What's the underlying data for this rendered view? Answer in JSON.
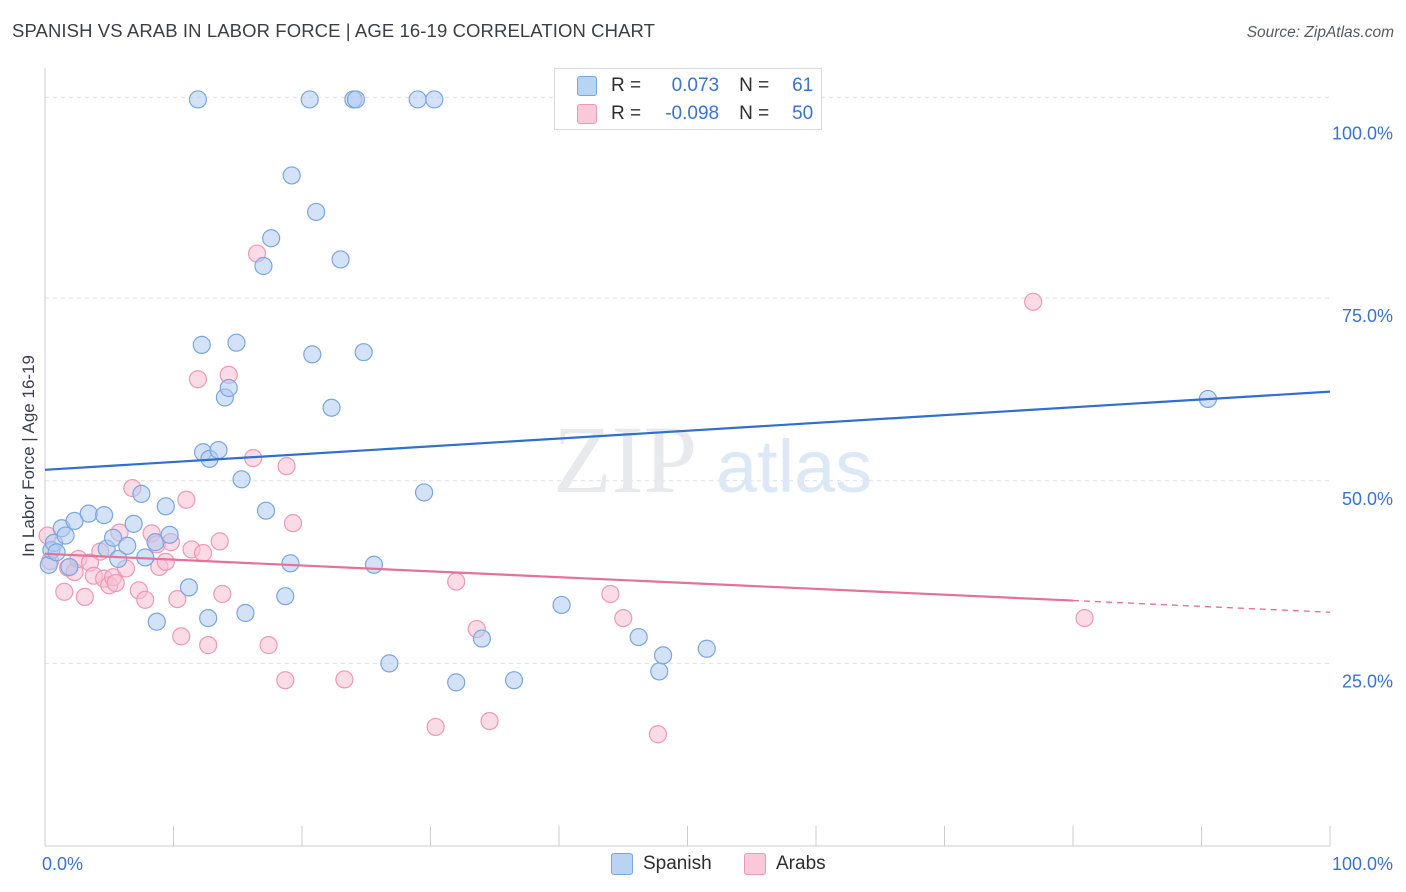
{
  "title": "SPANISH VS ARAB IN LABOR FORCE | AGE 16-19 CORRELATION CHART",
  "source": "Source: ZipAtlas.com",
  "watermark": {
    "zip": "ZIP",
    "atlas": "atlas"
  },
  "legend": {
    "spanish": {
      "r_label": "R =",
      "r_value": "0.073",
      "n_label": "N =",
      "n_value": "61"
    },
    "arabs": {
      "r_label": "R =",
      "r_value": "-0.098",
      "n_label": "N =",
      "n_value": "50"
    }
  },
  "bottom_legend": {
    "spanish": "Spanish",
    "arabs": "Arabs"
  },
  "colors": {
    "spanish_fill": "#aecbf1",
    "spanish_stroke": "#7aa6e0",
    "spanish_line": "#2f6fd0",
    "arabs_fill": "#f8bfd2",
    "arabs_stroke": "#ec98b6",
    "arabs_line": "#e7709a",
    "tick_label": "#3973d1",
    "grid": "#dcdfe4"
  },
  "chart_data": {
    "type": "scatter",
    "title": "SPANISH VS ARAB IN LABOR FORCE | AGE 16-19 CORRELATION CHART",
    "xlabel": "",
    "ylabel": "In Labor Force | Age 16-19",
    "xlim": [
      0,
      100
    ],
    "ylim": [
      0,
      105
    ],
    "x_tick_labels": [
      {
        "value": 0,
        "label": "0.0%"
      },
      {
        "value": 100,
        "label": "100.0%"
      }
    ],
    "y_tick_labels": [
      {
        "value": 25,
        "label": "25.0%"
      },
      {
        "value": 50,
        "label": "50.0%"
      },
      {
        "value": 75,
        "label": "75.0%"
      },
      {
        "value": 100,
        "label": "100.0%"
      }
    ],
    "y_gridlines": [
      25,
      50,
      75,
      102.5
    ],
    "x_ticks": [
      0,
      10,
      20,
      30,
      40,
      50,
      60,
      70,
      80,
      90,
      100
    ],
    "series": [
      {
        "name": "Spanish",
        "r": 0.073,
        "n": 61,
        "trend": {
          "x": [
            0,
            100
          ],
          "y": [
            51.5,
            62.2
          ],
          "dashed_from": null
        },
        "points": [
          {
            "x": 0.3,
            "y": 38.5
          },
          {
            "x": 0.5,
            "y": 40.5
          },
          {
            "x": 0.7,
            "y": 41.5
          },
          {
            "x": 1.3,
            "y": 43.5
          },
          {
            "x": 1.6,
            "y": 42.5
          },
          {
            "x": 2.3,
            "y": 44.5
          },
          {
            "x": 3.4,
            "y": 45.5
          },
          {
            "x": 4.6,
            "y": 45.3
          },
          {
            "x": 4.8,
            "y": 40.7
          },
          {
            "x": 5.3,
            "y": 42.2
          },
          {
            "x": 5.7,
            "y": 39.3
          },
          {
            "x": 6.4,
            "y": 41.1
          },
          {
            "x": 6.9,
            "y": 44.1
          },
          {
            "x": 7.5,
            "y": 48.2
          },
          {
            "x": 7.8,
            "y": 39.5
          },
          {
            "x": 8.6,
            "y": 41.6
          },
          {
            "x": 8.7,
            "y": 30.7
          },
          {
            "x": 9.4,
            "y": 46.5
          },
          {
            "x": 9.7,
            "y": 42.6
          },
          {
            "x": 11.2,
            "y": 35.4
          },
          {
            "x": 11.9,
            "y": 102.2
          },
          {
            "x": 12.2,
            "y": 68.6
          },
          {
            "x": 12.3,
            "y": 53.9
          },
          {
            "x": 12.8,
            "y": 53.0
          },
          {
            "x": 12.7,
            "y": 31.2
          },
          {
            "x": 13.5,
            "y": 54.2
          },
          {
            "x": 14.0,
            "y": 61.4
          },
          {
            "x": 14.3,
            "y": 62.7
          },
          {
            "x": 14.9,
            "y": 68.9
          },
          {
            "x": 15.3,
            "y": 50.2
          },
          {
            "x": 15.6,
            "y": 31.9
          },
          {
            "x": 17.0,
            "y": 79.4
          },
          {
            "x": 17.2,
            "y": 45.9
          },
          {
            "x": 17.6,
            "y": 83.2
          },
          {
            "x": 18.7,
            "y": 34.2
          },
          {
            "x": 19.1,
            "y": 38.7
          },
          {
            "x": 19.2,
            "y": 91.8
          },
          {
            "x": 20.6,
            "y": 102.2
          },
          {
            "x": 20.8,
            "y": 67.3
          },
          {
            "x": 21.1,
            "y": 86.8
          },
          {
            "x": 22.3,
            "y": 60.0
          },
          {
            "x": 23.0,
            "y": 80.3
          },
          {
            "x": 24.0,
            "y": 102.2
          },
          {
            "x": 24.2,
            "y": 102.2
          },
          {
            "x": 24.8,
            "y": 67.6
          },
          {
            "x": 25.6,
            "y": 38.5
          },
          {
            "x": 26.8,
            "y": 25.0
          },
          {
            "x": 29.0,
            "y": 102.2
          },
          {
            "x": 29.5,
            "y": 48.4
          },
          {
            "x": 30.3,
            "y": 102.2
          },
          {
            "x": 32.0,
            "y": 22.4
          },
          {
            "x": 34.0,
            "y": 28.4
          },
          {
            "x": 36.5,
            "y": 22.7
          },
          {
            "x": 40.2,
            "y": 33.0
          },
          {
            "x": 46.2,
            "y": 28.6
          },
          {
            "x": 47.8,
            "y": 23.9
          },
          {
            "x": 48.1,
            "y": 26.1
          },
          {
            "x": 51.5,
            "y": 27.0
          },
          {
            "x": 90.5,
            "y": 61.2
          },
          {
            "x": 0.9,
            "y": 40.2
          },
          {
            "x": 1.9,
            "y": 38.2
          }
        ]
      },
      {
        "name": "Arabs",
        "r": -0.098,
        "n": 50,
        "trend": {
          "x": [
            0,
            100
          ],
          "y": [
            40.0,
            32.0
          ],
          "dashed_from": 80
        },
        "points": [
          {
            "x": 0.2,
            "y": 42.5
          },
          {
            "x": 0.4,
            "y": 39.0
          },
          {
            "x": 1.5,
            "y": 34.8
          },
          {
            "x": 1.8,
            "y": 38.1
          },
          {
            "x": 2.3,
            "y": 37.5
          },
          {
            "x": 2.6,
            "y": 39.3
          },
          {
            "x": 3.1,
            "y": 34.1
          },
          {
            "x": 3.5,
            "y": 38.8
          },
          {
            "x": 3.8,
            "y": 37.0
          },
          {
            "x": 4.3,
            "y": 40.3
          },
          {
            "x": 4.6,
            "y": 36.6
          },
          {
            "x": 5.0,
            "y": 35.7
          },
          {
            "x": 5.3,
            "y": 36.8
          },
          {
            "x": 5.5,
            "y": 36.0
          },
          {
            "x": 5.8,
            "y": 42.9
          },
          {
            "x": 6.3,
            "y": 38.0
          },
          {
            "x": 6.8,
            "y": 49.0
          },
          {
            "x": 7.3,
            "y": 35.0
          },
          {
            "x": 7.8,
            "y": 33.7
          },
          {
            "x": 8.3,
            "y": 42.8
          },
          {
            "x": 8.7,
            "y": 41.3
          },
          {
            "x": 8.9,
            "y": 38.2
          },
          {
            "x": 9.4,
            "y": 38.9
          },
          {
            "x": 9.8,
            "y": 41.6
          },
          {
            "x": 10.3,
            "y": 33.8
          },
          {
            "x": 10.6,
            "y": 28.7
          },
          {
            "x": 11.0,
            "y": 47.4
          },
          {
            "x": 11.4,
            "y": 40.6
          },
          {
            "x": 11.9,
            "y": 63.9
          },
          {
            "x": 12.3,
            "y": 40.1
          },
          {
            "x": 12.7,
            "y": 27.5
          },
          {
            "x": 13.6,
            "y": 41.7
          },
          {
            "x": 13.8,
            "y": 34.5
          },
          {
            "x": 14.3,
            "y": 64.5
          },
          {
            "x": 16.2,
            "y": 53.1
          },
          {
            "x": 16.5,
            "y": 81.1
          },
          {
            "x": 17.4,
            "y": 27.5
          },
          {
            "x": 18.7,
            "y": 22.7
          },
          {
            "x": 18.8,
            "y": 52.0
          },
          {
            "x": 19.3,
            "y": 44.2
          },
          {
            "x": 23.3,
            "y": 22.8
          },
          {
            "x": 30.4,
            "y": 16.3
          },
          {
            "x": 32.0,
            "y": 36.2
          },
          {
            "x": 33.6,
            "y": 29.7
          },
          {
            "x": 34.6,
            "y": 17.1
          },
          {
            "x": 44.0,
            "y": 34.5
          },
          {
            "x": 45.0,
            "y": 31.2
          },
          {
            "x": 47.7,
            "y": 15.3
          },
          {
            "x": 76.9,
            "y": 74.5
          },
          {
            "x": 80.9,
            "y": 31.2
          }
        ]
      }
    ]
  }
}
